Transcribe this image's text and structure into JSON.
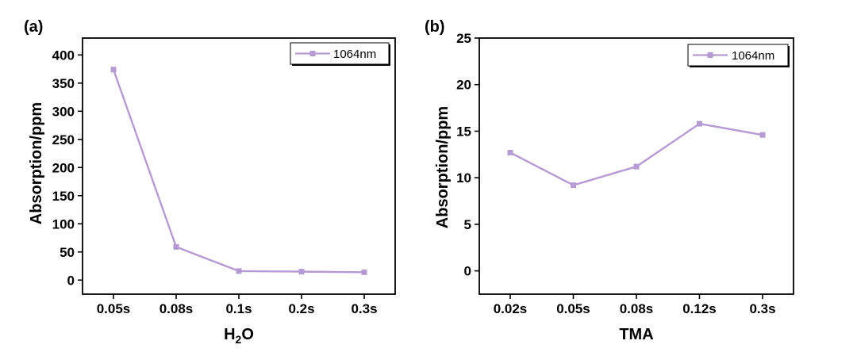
{
  "series_color": "#b59ad3",
  "chart_data": [
    {
      "type": "line",
      "panel_label": "(a)",
      "xlabel_main": "H",
      "xlabel_sub": "2",
      "xlabel_tail": "O",
      "ylabel": "Absorption/ppm",
      "categories": [
        "0.05s",
        "0.08s",
        "0.1s",
        "0.2s",
        "0.3s"
      ],
      "series": [
        {
          "name": "1064nm",
          "values": [
            374,
            59,
            16,
            15,
            14
          ],
          "marker": "square"
        }
      ],
      "ylim": [
        -25,
        430
      ],
      "yticks": [
        0,
        50,
        100,
        150,
        200,
        250,
        300,
        350,
        400
      ],
      "legend_position": "top-right",
      "grid": false
    },
    {
      "type": "line",
      "panel_label": "(b)",
      "xlabel_main": "TMA",
      "xlabel_sub": "",
      "xlabel_tail": "",
      "ylabel": "Absorption/ppm",
      "categories": [
        "0.02s",
        "0.05s",
        "0.08s",
        "0.12s",
        "0.3s"
      ],
      "series": [
        {
          "name": "1064nm",
          "values": [
            12.7,
            9.2,
            11.2,
            15.8,
            14.6
          ],
          "marker": "square"
        }
      ],
      "ylim": [
        -2.5,
        25
      ],
      "yticks": [
        0,
        5,
        10,
        15,
        20,
        25
      ],
      "legend_position": "top-right",
      "grid": false
    }
  ]
}
